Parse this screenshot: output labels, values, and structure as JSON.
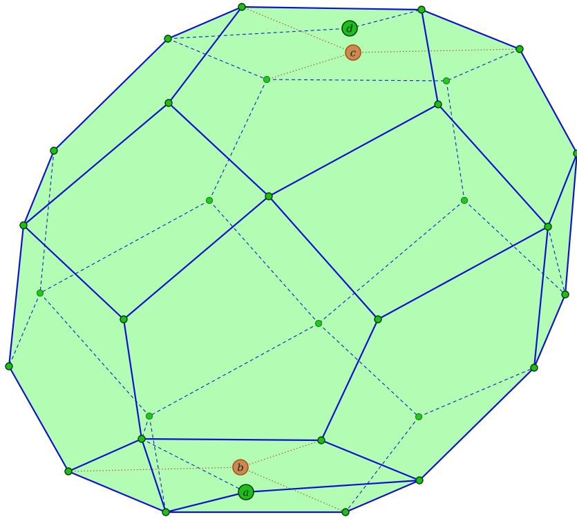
{
  "labels": {
    "a": "a",
    "b": "b",
    "c": "c",
    "d": "d"
  },
  "colors": {
    "face_fill": "#b3fcb3",
    "edge": "#1010d0",
    "vertex": "#18c018",
    "aux_point": "#c98a52",
    "aux_line": "#a35a1c"
  }
}
